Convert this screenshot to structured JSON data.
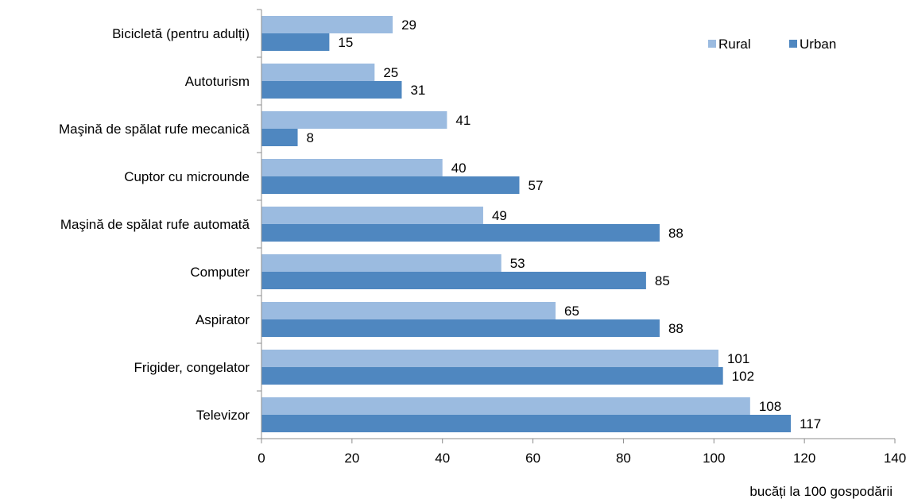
{
  "chart_data": {
    "type": "bar",
    "orientation": "horizontal",
    "categories": [
      "Bicicletă (pentru adulți)",
      "Autoturism",
      "Maşină de spălat rufe mecanică",
      "Cuptor cu microunde",
      "Maşină de spălat rufe automată",
      "Computer",
      "Aspirator",
      "Frigider, congelator",
      "Televizor"
    ],
    "series": [
      {
        "name": "Rural",
        "color": "#9bbbe0",
        "values": [
          29,
          25,
          41,
          40,
          49,
          53,
          65,
          101,
          108
        ]
      },
      {
        "name": "Urban",
        "color": "#4f87c0",
        "values": [
          15,
          31,
          8,
          57,
          88,
          85,
          88,
          102,
          117
        ]
      }
    ],
    "xlim": [
      0,
      140
    ],
    "xticks": [
      0,
      20,
      40,
      60,
      80,
      100,
      120,
      140
    ],
    "xlabel": "bucăți la 100 gospodării",
    "title": "",
    "ylabel": "",
    "legend_position": "top-right",
    "grid": false
  }
}
